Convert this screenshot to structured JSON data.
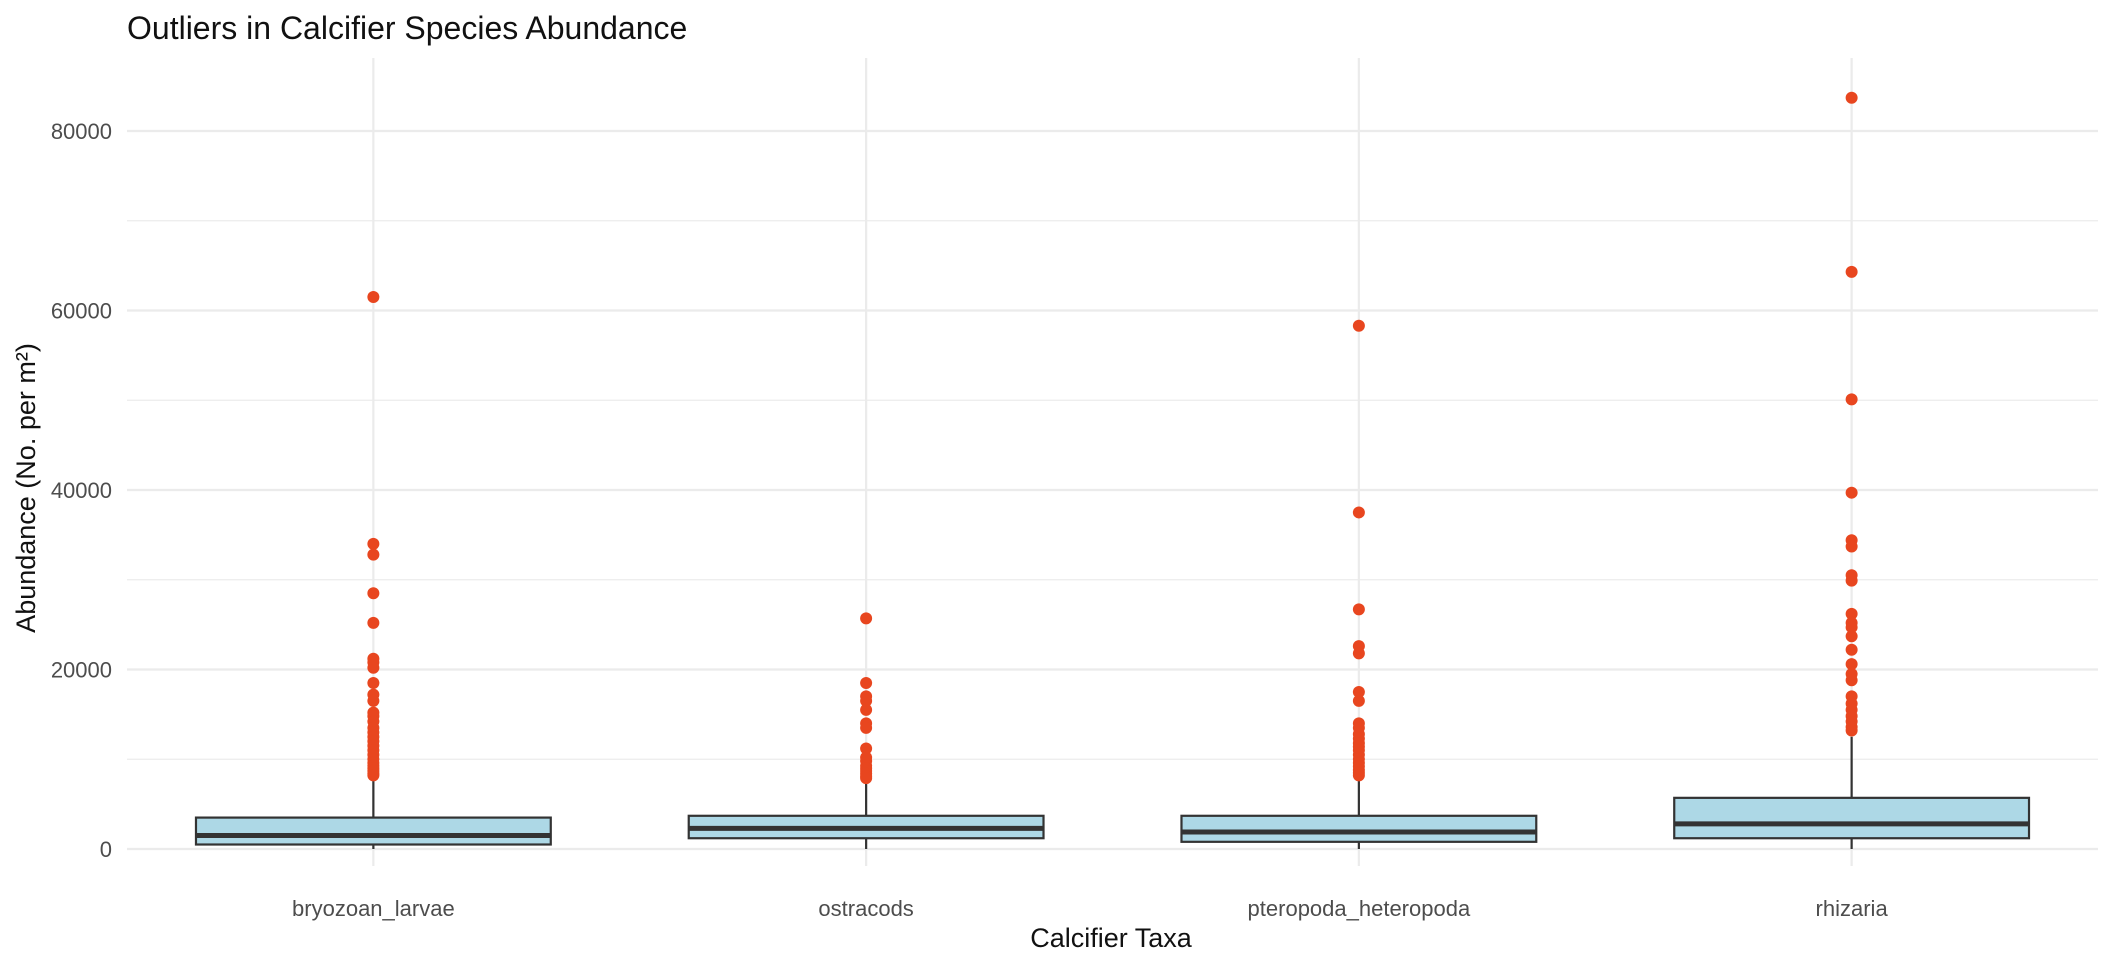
{
  "chart_data": {
    "type": "box",
    "title": "Outliers in Calcifier Species Abundance",
    "xlabel": "Calcifier Taxa",
    "ylabel": "Abundance (No. per m²)",
    "categories": [
      "bryozoan_larvae",
      "ostracods",
      "pteropoda_heteropoda",
      "rhizaria"
    ],
    "ylim": [
      -2000,
      88000
    ],
    "yticks": [
      0,
      20000,
      40000,
      60000,
      80000
    ],
    "ytick_labels": [
      "0",
      "20000",
      "40000",
      "60000",
      "80000"
    ],
    "grid": true,
    "legend": "none",
    "colors": {
      "box_fill": "#add8e6",
      "box_line": "#333333",
      "outlier": "#e8461f",
      "grid": "#ebebeb"
    },
    "boxes": [
      {
        "category": "bryozoan_larvae",
        "whisker_low": 0,
        "q1": 500,
        "median": 1500,
        "q3": 3500,
        "whisker_high": 7900,
        "outliers": [
          61500,
          34000,
          32800,
          28500,
          25200,
          21200,
          20800,
          20200,
          18500,
          17200,
          16500,
          15200,
          14800,
          14200,
          13500,
          13000,
          12500,
          12000,
          11500,
          11000,
          10500,
          10000,
          9600,
          9300,
          9000,
          8700,
          8400,
          8200
        ]
      },
      {
        "category": "ostracods",
        "whisker_low": 0,
        "q1": 1200,
        "median": 2300,
        "q3": 3700,
        "whisker_high": 7600,
        "outliers": [
          25700,
          18500,
          17000,
          16500,
          15500,
          14000,
          13500,
          11200,
          10200,
          9800,
          9300,
          9000,
          8700,
          8400,
          8100,
          7900
        ]
      },
      {
        "category": "pteropoda_heteropoda",
        "whisker_low": 0,
        "q1": 800,
        "median": 1900,
        "q3": 3700,
        "whisker_high": 7900,
        "outliers": [
          58300,
          37500,
          26700,
          22600,
          21800,
          17500,
          16500,
          14000,
          13500,
          12800,
          12300,
          11800,
          11400,
          11000,
          10500,
          10000,
          9600,
          9200,
          8800,
          8500,
          8200
        ]
      },
      {
        "category": "rhizaria",
        "whisker_low": 0,
        "q1": 1200,
        "median": 2800,
        "q3": 5700,
        "whisker_high": 12500,
        "outliers": [
          83700,
          64300,
          50100,
          39700,
          34400,
          33700,
          30500,
          29900,
          26200,
          25200,
          24700,
          23700,
          22200,
          20600,
          19500,
          18800,
          17000,
          16200,
          15500,
          14800,
          14200,
          13600,
          13200
        ]
      }
    ]
  }
}
